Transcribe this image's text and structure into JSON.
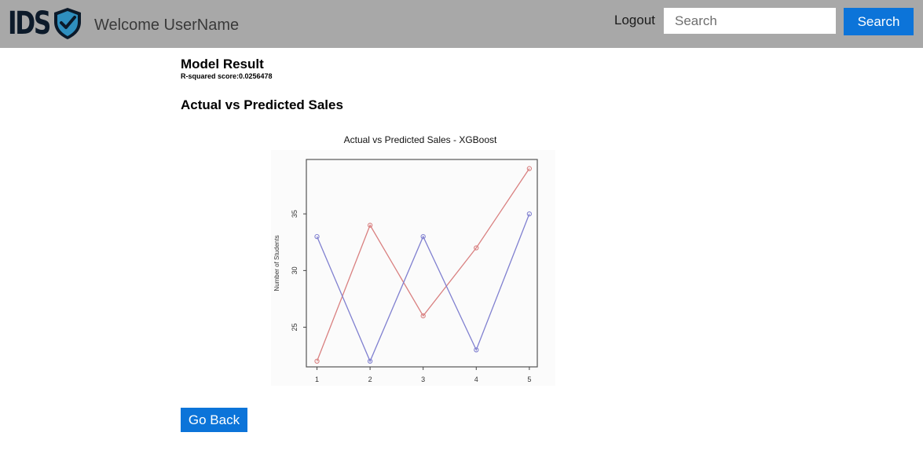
{
  "header": {
    "logo_text": "IDS",
    "welcome": "Welcome UserName",
    "logout_label": "Logout",
    "search_placeholder": "Search",
    "search_value": "",
    "search_button_label": "Search"
  },
  "main": {
    "model_result_title": "Model Result",
    "r_squared_text": "R-squared score:0.0256478",
    "section_title": "Actual vs Predicted Sales",
    "go_back_label": "Go Back"
  },
  "colors": {
    "navbar_bg": "#a8a8a8",
    "accent_button": "#0c74d9",
    "series_red": "#d98080",
    "series_blue": "#8080d0"
  },
  "chart_data": {
    "type": "line",
    "title": "Actual vs Predicted Sales - XGBoost",
    "xlabel": "",
    "ylabel": "Number of Students",
    "x": [
      1,
      2,
      3,
      4,
      5
    ],
    "xticks": [
      "1",
      "2",
      "3",
      "4",
      "5"
    ],
    "yticks": [
      "25",
      "30",
      "35"
    ],
    "ylim": [
      21.5,
      39.8
    ],
    "xlim": [
      0.8,
      5.15
    ],
    "grid": false,
    "legend": "none",
    "series": [
      {
        "color": "#d98080",
        "values": [
          22,
          34,
          26,
          32,
          39
        ]
      },
      {
        "color": "#8080d0",
        "values": [
          33,
          22,
          33,
          23,
          35
        ]
      }
    ]
  }
}
